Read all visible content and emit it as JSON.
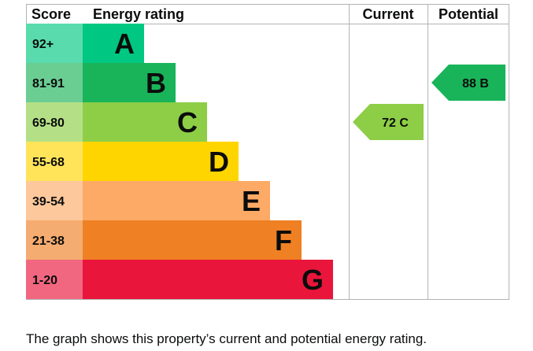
{
  "chart_data": {
    "type": "bar",
    "headers": {
      "score": "Score",
      "rating": "Energy rating",
      "current": "Current",
      "potential": "Potential"
    },
    "bands": [
      {
        "range": "92+",
        "letter": "A",
        "length": 1,
        "color": "#00c781"
      },
      {
        "range": "81-91",
        "letter": "B",
        "length": 2,
        "color": "#19b459"
      },
      {
        "range": "69-80",
        "letter": "C",
        "length": 3,
        "color": "#8dce46"
      },
      {
        "range": "55-68",
        "letter": "D",
        "length": 4,
        "color": "#ffd500"
      },
      {
        "range": "39-54",
        "letter": "E",
        "length": 5,
        "color": "#fcaa65"
      },
      {
        "range": "21-38",
        "letter": "F",
        "length": 6,
        "color": "#ef8023"
      },
      {
        "range": "1-20",
        "letter": "G",
        "length": 7,
        "color": "#e9153b"
      }
    ],
    "current": {
      "value": 72,
      "band": "C",
      "label": "72  C",
      "color": "#8dce46"
    },
    "potential": {
      "value": 88,
      "band": "B",
      "label": "88  B",
      "color": "#19b459"
    }
  },
  "caption": "The graph shows this property’s current and potential energy rating."
}
